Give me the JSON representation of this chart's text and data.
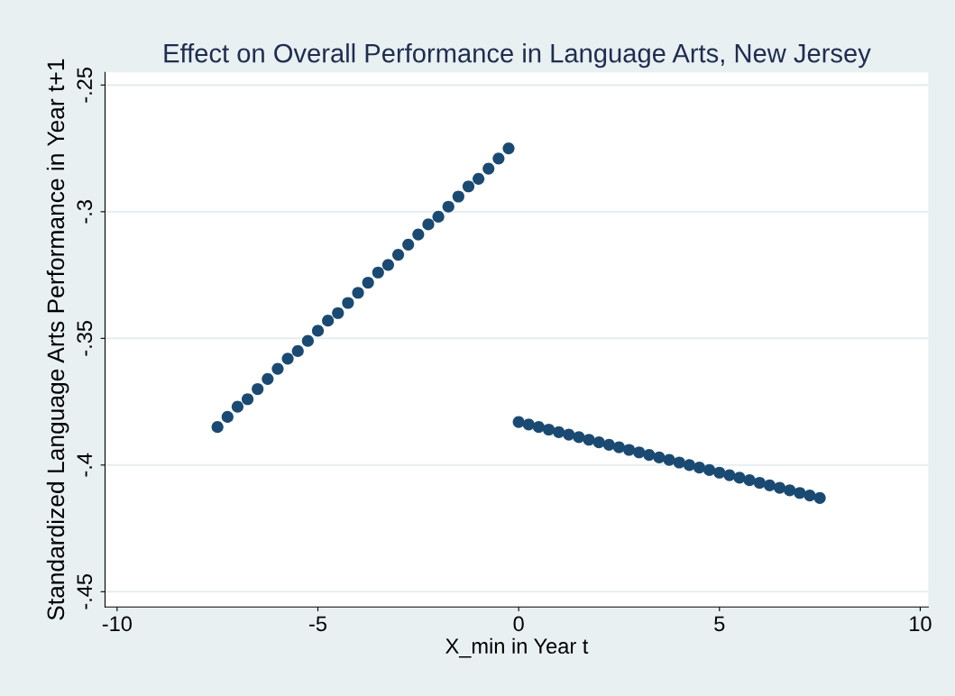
{
  "chart_data": {
    "type": "scatter",
    "title": "Effect on Overall Performance in Language Arts, New Jersey",
    "xlabel": "X_min in Year t",
    "ylabel": "Standardized Language Arts Performance in Year t+1",
    "xlim": [
      -10.3,
      10.2
    ],
    "xticks": [
      {
        "value": -10,
        "label": "-10"
      },
      {
        "value": -5,
        "label": "-5"
      },
      0,
      5,
      10
    ],
    "ylim": [
      -0.456,
      -0.245
    ],
    "yticks": [
      {
        "value": -0.45,
        "label": "-.45"
      },
      {
        "value": -0.4,
        "label": "-.4"
      },
      {
        "value": -0.35,
        "label": "-.35"
      },
      {
        "value": -0.3,
        "label": "-.3"
      },
      {
        "value": -0.25,
        "label": "-.25"
      }
    ],
    "grid": "y",
    "marker": "circle",
    "legend": false,
    "series": [
      {
        "color": "#1a4a72",
        "x": [
          -7.5,
          -7.25,
          -7,
          -6.75,
          -6.5,
          -6.25,
          -6,
          -5.75,
          -5.5,
          -5.25,
          -5,
          -4.75,
          -4.5,
          -4.25,
          -4,
          -3.75,
          -3.5,
          -3.25,
          -3,
          -2.75,
          -2.5,
          -2.25,
          -2,
          -1.75,
          -1.5,
          -1.25,
          -1,
          -0.75,
          -0.5,
          -0.25
        ],
        "values": [
          -0.385,
          -0.381,
          -0.377,
          -0.374,
          -0.37,
          -0.366,
          -0.362,
          -0.358,
          -0.355,
          -0.351,
          -0.347,
          -0.343,
          -0.34,
          -0.336,
          -0.332,
          -0.328,
          -0.324,
          -0.321,
          -0.317,
          -0.313,
          -0.309,
          -0.305,
          -0.302,
          -0.298,
          -0.294,
          -0.29,
          -0.287,
          -0.283,
          -0.279,
          -0.275
        ]
      },
      {
        "color": "#1a4a72",
        "x": [
          0,
          0.25,
          0.5,
          0.75,
          1,
          1.25,
          1.5,
          1.75,
          2,
          2.25,
          2.5,
          2.75,
          3,
          3.25,
          3.5,
          3.75,
          4,
          4.25,
          4.5,
          4.75,
          5,
          5.25,
          5.5,
          5.75,
          6,
          6.25,
          6.5,
          6.75,
          7,
          7.25,
          7.5
        ],
        "values": [
          -0.383,
          -0.384,
          -0.385,
          -0.386,
          -0.387,
          -0.388,
          -0.389,
          -0.39,
          -0.391,
          -0.392,
          -0.393,
          -0.394,
          -0.395,
          -0.396,
          -0.397,
          -0.398,
          -0.399,
          -0.4,
          -0.401,
          -0.402,
          -0.403,
          -0.404,
          -0.405,
          -0.406,
          -0.407,
          -0.408,
          -0.409,
          -0.41,
          -0.411,
          -0.412,
          -0.413
        ]
      }
    ]
  }
}
